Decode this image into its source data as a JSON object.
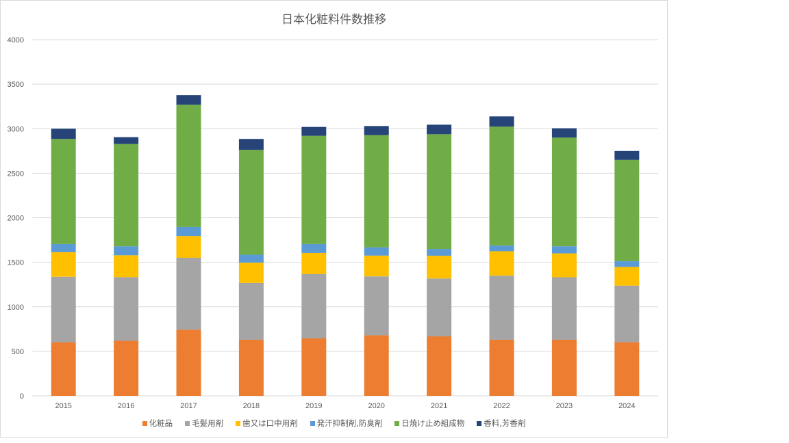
{
  "chart_data": {
    "type": "bar",
    "stacked": true,
    "title": "日本化粧料件数推移",
    "xlabel": "",
    "ylabel": "",
    "ylim": [
      0,
      4000
    ],
    "yticks": [
      0,
      500,
      1000,
      1500,
      2000,
      2500,
      3000,
      3500,
      4000
    ],
    "grid": true,
    "legend_position": "bottom",
    "categories": [
      "2015",
      "2016",
      "2017",
      "2018",
      "2019",
      "2020",
      "2021",
      "2022",
      "2023",
      "2024"
    ],
    "series": [
      {
        "name": "化粧品",
        "color": "#ed7d31",
        "values": [
          602,
          618,
          743,
          630,
          645,
          680,
          668,
          630,
          630,
          602
        ]
      },
      {
        "name": "毛髪用剤",
        "color": "#a5a5a5",
        "values": [
          736,
          715,
          808,
          638,
          722,
          662,
          650,
          719,
          702,
          636
        ]
      },
      {
        "name": "歯又は口中用剤",
        "color": "#ffc000",
        "values": [
          275,
          246,
          244,
          227,
          238,
          233,
          255,
          275,
          268,
          209
        ]
      },
      {
        "name": "発汗抑制剤,防臭剤",
        "color": "#5b9bd5",
        "values": [
          92,
          101,
          102,
          90,
          100,
          92,
          77,
          64,
          80,
          65
        ]
      },
      {
        "name": "日焼け止め組成物",
        "color": "#70ad47",
        "values": [
          1180,
          1148,
          1372,
          1177,
          1215,
          1261,
          1288,
          1335,
          1220,
          1138
        ]
      },
      {
        "name": "香料,芳香剤",
        "color": "#264478",
        "values": [
          115,
          77,
          108,
          123,
          100,
          102,
          107,
          115,
          105,
          100
        ]
      }
    ]
  }
}
